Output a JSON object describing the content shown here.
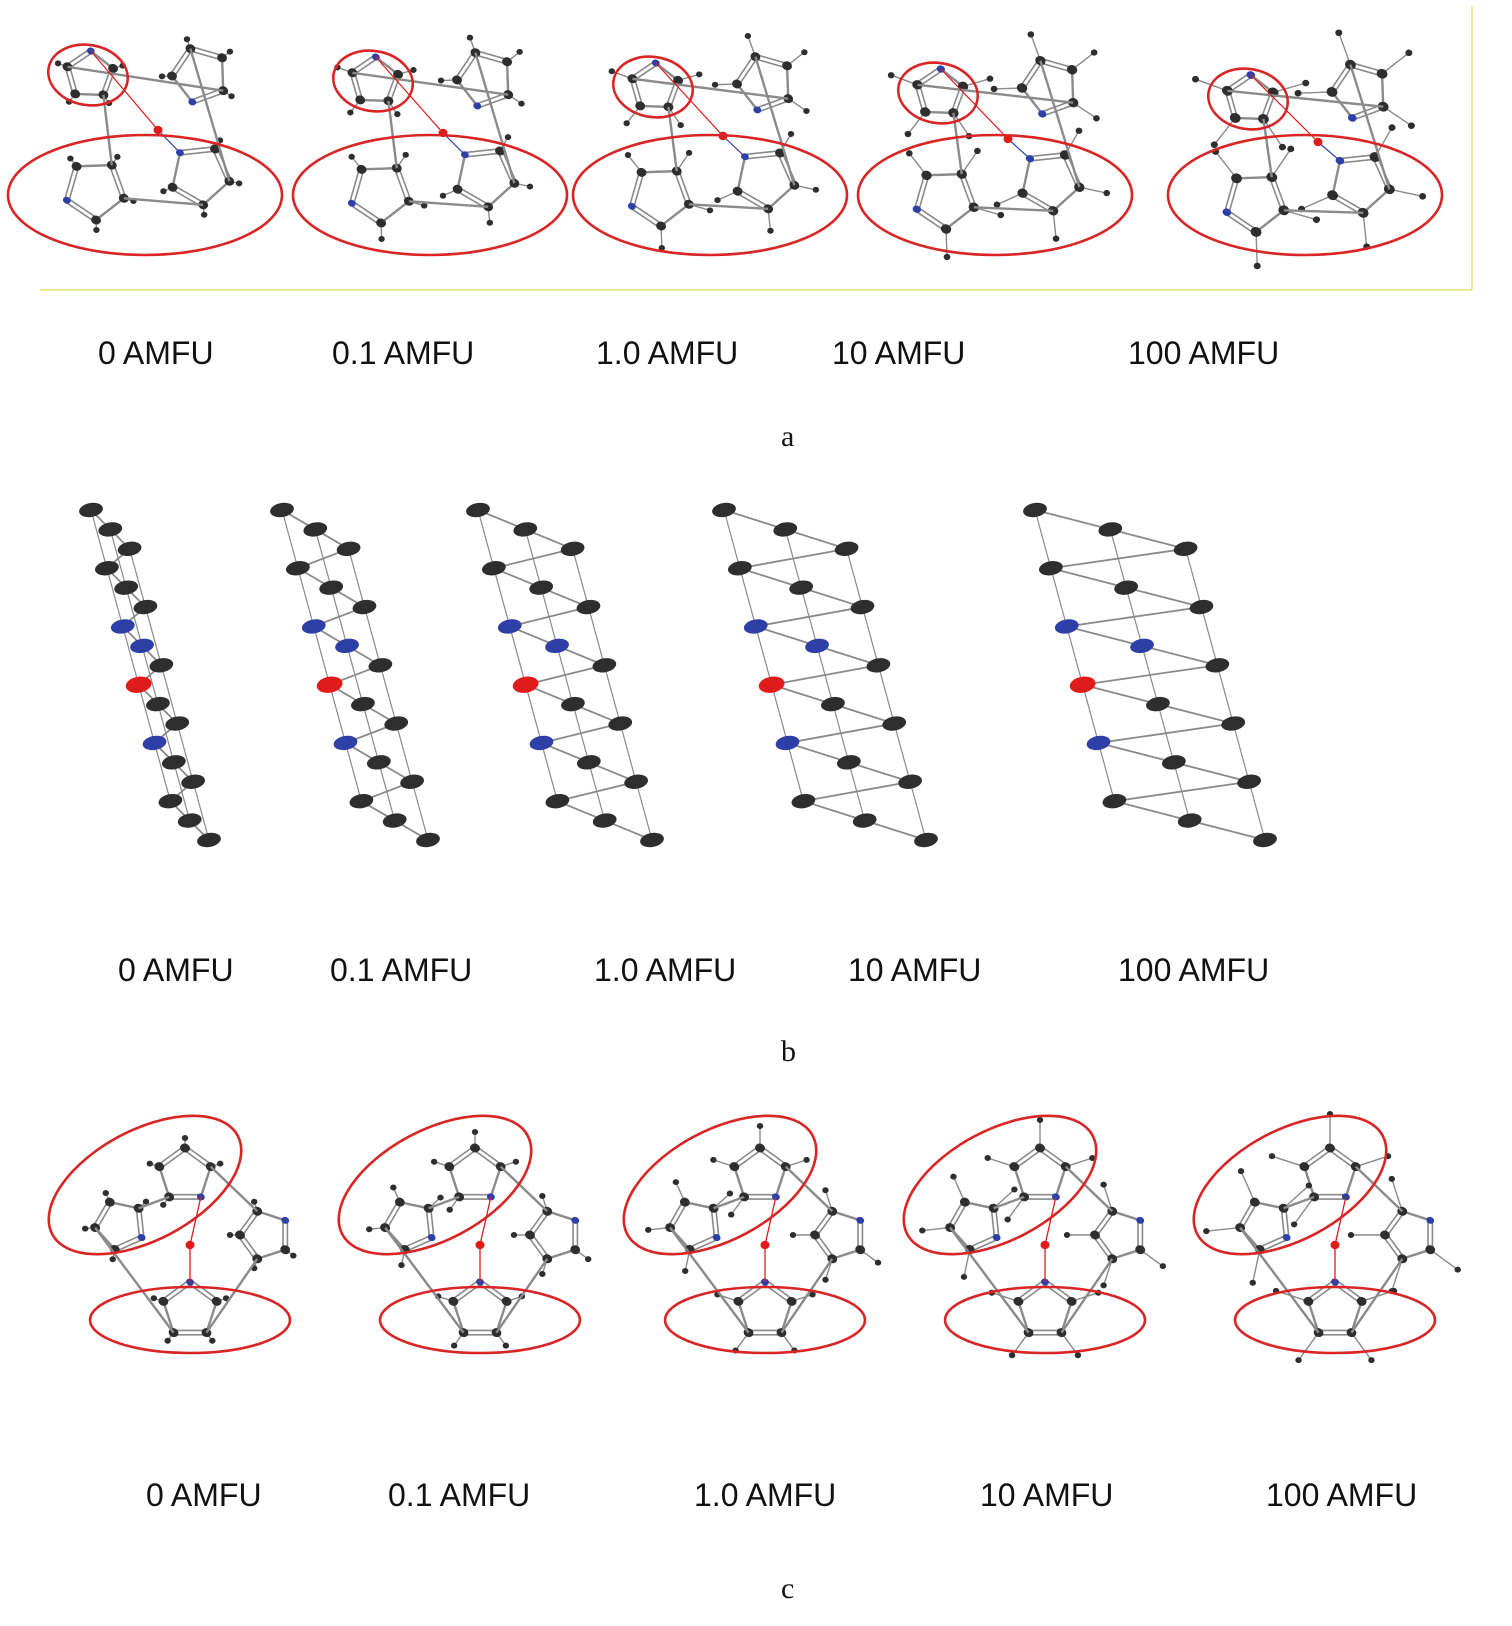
{
  "colors": {
    "carbon": "#2e2e2e",
    "nitrogen": "#2f3fa8",
    "oxygen": "#e01b1b",
    "bond": "#8a8a8a",
    "ellipse": "#d92525",
    "frame": "#e8e070"
  },
  "panels": [
    {
      "letter": "a",
      "labels": [
        "0 AMFU",
        "0.1 AMFU",
        "1.0 AMFU",
        "10 AMFU",
        "100 AMFU"
      ]
    },
    {
      "letter": "b",
      "labels": [
        "0 AMFU",
        "0.1 AMFU",
        "1.0 AMFU",
        "10 AMFU",
        "100 AMFU"
      ]
    },
    {
      "letter": "c",
      "labels": [
        "0 AMFU",
        "0.1 AMFU",
        "1.0 AMFU",
        "10 AMFU",
        "100 AMFU"
      ]
    }
  ]
}
